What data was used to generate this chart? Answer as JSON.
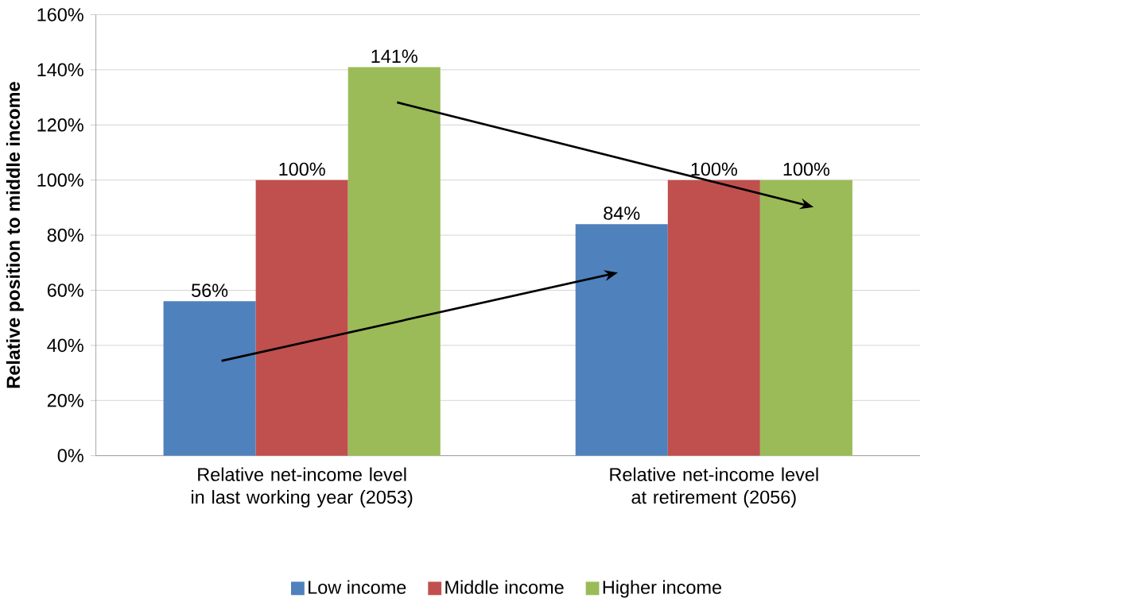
{
  "chart_data": {
    "type": "bar",
    "ylabel": "Relative position to middle income",
    "categories": [
      "Relative net-income level in last working year (2053)",
      "Relative net-income level at retirement (2056)"
    ],
    "series": [
      {
        "name": "Low income",
        "color": "#4f81bd",
        "values": [
          56,
          84
        ],
        "value_labels": [
          "56%",
          "84%"
        ]
      },
      {
        "name": "Middle income",
        "color": "#c0504d",
        "values": [
          100,
          100
        ],
        "value_labels": [
          "100%",
          "100%"
        ]
      },
      {
        "name": "Higher income",
        "color": "#9bbb59",
        "values": [
          141,
          100
        ],
        "value_labels": [
          "141%",
          "100%"
        ]
      }
    ],
    "ylim": [
      0,
      160
    ],
    "yticks": [
      {
        "value": 0,
        "label": "0%"
      },
      {
        "value": 20,
        "label": "20%"
      },
      {
        "value": 40,
        "label": "40%"
      },
      {
        "value": 60,
        "label": "60%"
      },
      {
        "value": 80,
        "label": "80%"
      },
      {
        "value": 100,
        "label": "100%"
      },
      {
        "value": 120,
        "label": "120%"
      },
      {
        "value": 140,
        "label": "140%"
      },
      {
        "value": 160,
        "label": "160%"
      }
    ],
    "grid": "y",
    "legend": "bottom"
  }
}
